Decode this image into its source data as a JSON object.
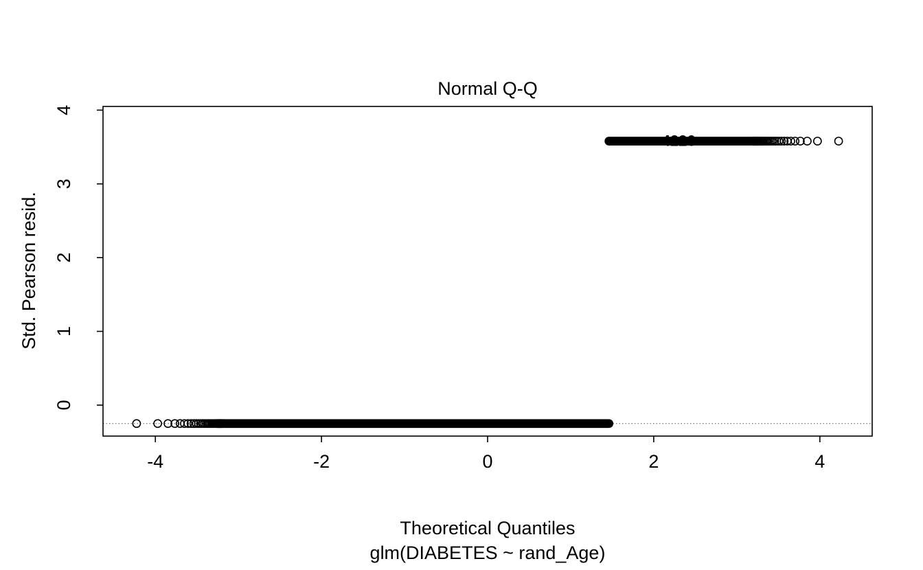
{
  "chart_data": {
    "type": "scatter",
    "title": "Normal Q-Q",
    "xlabel": "Theoretical Quantiles",
    "xlabel_line2": "glm(DIABETES ~ rand_Age)",
    "ylabel": "Std. Pearson resid.",
    "xlim": [
      -4.63,
      4.63
    ],
    "ylim": [
      -0.42,
      4.05
    ],
    "xticks": [
      -4,
      -2,
      0,
      2,
      4
    ],
    "yticks": [
      0,
      1,
      2,
      3,
      4
    ],
    "grid": false,
    "legend": "none",
    "marker": "open-circle",
    "point_color": "#000000",
    "reference_line": {
      "type": "qqline",
      "style": "dotted",
      "y": -0.25,
      "from_x": -4.63,
      "to_x": 4.63
    },
    "bands": [
      {
        "name": "lower-residual-band",
        "y": -0.25,
        "x_min": -4.22,
        "x_max": 1.46
      },
      {
        "name": "upper-residual-band",
        "y": 3.58,
        "x_min": 1.46,
        "x_max": 4.22
      }
    ],
    "qq_generator": {
      "n_points": 42000,
      "lower_residual": -0.25,
      "upper_residual": 3.58,
      "upper_fraction": 0.072,
      "note": "x = standard normal quantiles of (i-0.5)/n; y = lower_residual for the first (1-upper_fraction)*n sorted points, upper_residual for the remainder (binary-response glm residuals form two horizontal bands)"
    },
    "point_labels": [
      {
        "text": "4226",
        "x": 2.3,
        "y": 3.58
      }
    ]
  }
}
